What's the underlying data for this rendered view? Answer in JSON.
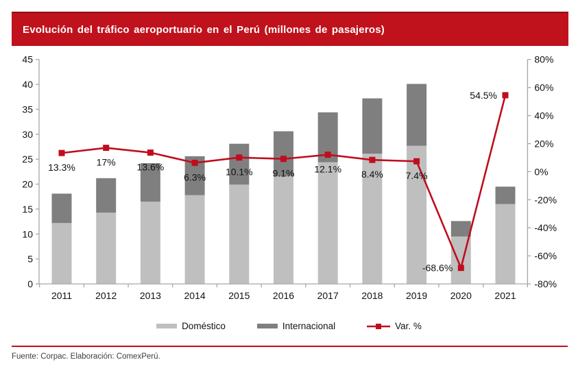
{
  "banner": {
    "title": "Evolución del tráfico aeroportuario en el Perú (millones de pasajeros)",
    "bg_color": "#c0121c",
    "text_color": "#ffffff"
  },
  "legend": {
    "items": [
      {
        "label": "Doméstico",
        "swatch": "bar",
        "color": "#bfbfbf"
      },
      {
        "label": "Internacional",
        "swatch": "bar",
        "color": "#7f7f7f"
      },
      {
        "label": "Var. %",
        "swatch": "line-marker",
        "color": "#c00d1e"
      }
    ]
  },
  "footer": {
    "source_note": "Fuente: Corpac. Elaboración: ComexPerú."
  },
  "chart_data": {
    "type": "bar",
    "subtype": "stacked-bars-with-line",
    "title": "Evolución del tráfico aeroportuario en el Perú (millones de pasajeros)",
    "categories": [
      "2011",
      "2012",
      "2013",
      "2014",
      "2015",
      "2016",
      "2017",
      "2018",
      "2019",
      "2020",
      "2021"
    ],
    "series": [
      {
        "name": "Doméstico",
        "color": "#bfbfbf",
        "values": [
          12.2,
          14.3,
          16.5,
          17.8,
          19.9,
          21.6,
          24.4,
          26.1,
          27.7,
          9.5,
          16.0
        ]
      },
      {
        "name": "Internacional",
        "color": "#7f7f7f",
        "values": [
          5.9,
          6.9,
          7.7,
          7.8,
          8.2,
          9.0,
          10.0,
          11.1,
          12.4,
          3.1,
          3.5
        ]
      }
    ],
    "totals": [
      18.1,
      21.2,
      24.2,
      25.6,
      28.1,
      30.6,
      34.4,
      37.2,
      40.1,
      12.6,
      19.5
    ],
    "line_series": {
      "name": "Var. %",
      "color": "#c00d1e",
      "axis": "right",
      "values": [
        13.3,
        17,
        13.6,
        6.3,
        10.1,
        9.1,
        12.1,
        8.4,
        7.4,
        -68.6,
        54.5
      ],
      "labels": [
        "13.3%",
        "17%",
        "13.6%",
        "6.3%",
        "10.1%",
        "9.1%",
        "12.1%",
        "8.4%",
        "7.4%",
        "-68.6%",
        "54.5%"
      ],
      "label_pos": [
        "below",
        "below",
        "below",
        "below",
        "below",
        "below",
        "below",
        "below",
        "below",
        "left",
        "left"
      ]
    },
    "axes": {
      "left": {
        "min": 0,
        "max": 45,
        "step": 5,
        "suffix": "",
        "tick_labels": [
          "0",
          "5",
          "10",
          "15",
          "20",
          "25",
          "30",
          "35",
          "40",
          "45"
        ]
      },
      "right": {
        "min": -80,
        "max": 80,
        "step": 20,
        "suffix": "%",
        "tick_labels": [
          "-80%",
          "-60%",
          "-40%",
          "-20%",
          "0%",
          "20%",
          "40%",
          "60%",
          "80%"
        ]
      }
    },
    "grid": false,
    "legend_position": "bottom",
    "axis_line_color": "#a6a6a6",
    "label_color": "#111111"
  }
}
